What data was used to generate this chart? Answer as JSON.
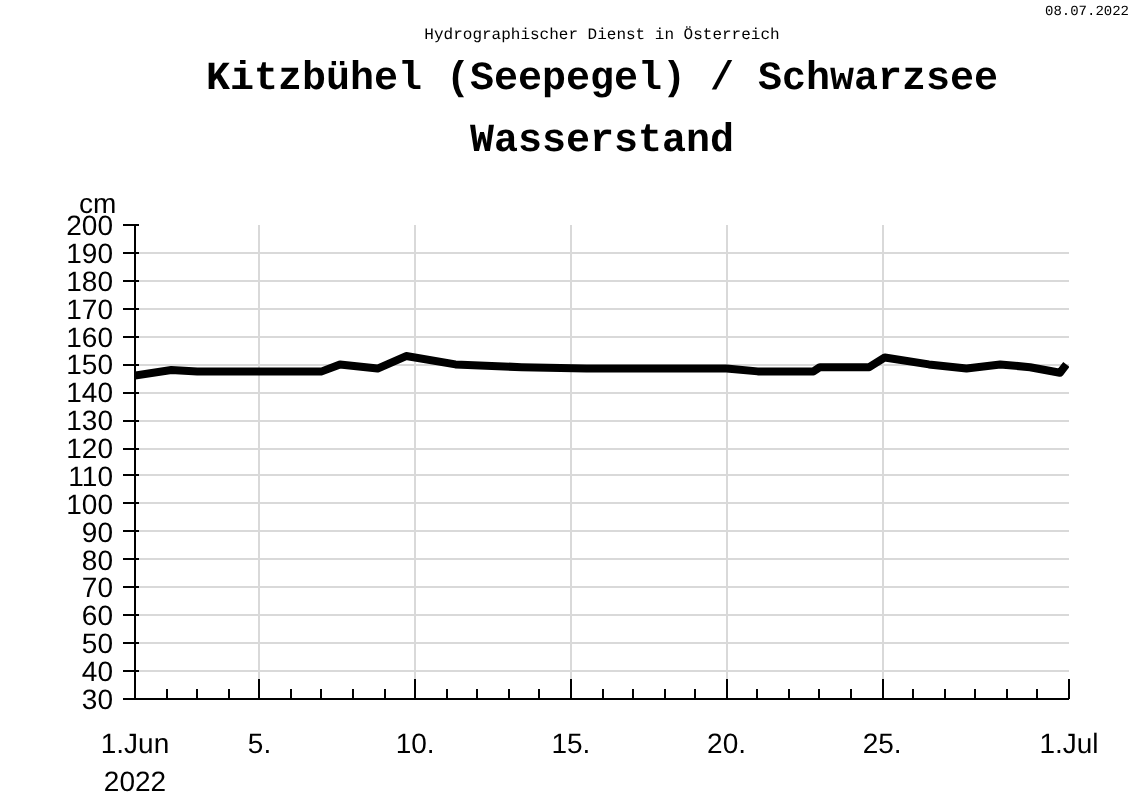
{
  "chart_data": {
    "type": "line",
    "title": "Kitzbühel (Seepegel) / Schwarzsee",
    "subtitle": "Wasserstand",
    "ylabel": "cm",
    "annotations": [
      "Hydrographischer Dienst in Österreich",
      "08.07.2022"
    ],
    "x": [
      "2022-06-01T00:00",
      "2022-06-02T04:00",
      "2022-06-03T00:00",
      "2022-06-05T00:00",
      "2022-06-07T00:00",
      "2022-06-07T14:00",
      "2022-06-08T19:00",
      "2022-06-09T17:00",
      "2022-06-11T07:00",
      "2022-06-13T10:00",
      "2022-06-15T12:00",
      "2022-06-17T00:00",
      "2022-06-20T00:00",
      "2022-06-21T00:00",
      "2022-06-22T19:00",
      "2022-06-23T00:00",
      "2022-06-24T14:00",
      "2022-06-25T02:00",
      "2022-06-26T12:00",
      "2022-06-27T17:00",
      "2022-06-28T19:00",
      "2022-06-29T18:00",
      "2022-06-30T17:00",
      "2022-06-30T22:00"
    ],
    "series": [
      {
        "color": "#000000",
        "values": [
          146,
          148,
          147.5,
          147.5,
          147.5,
          150,
          148.5,
          153,
          150,
          149,
          148.5,
          148.5,
          148.5,
          147.5,
          147.5,
          149,
          149,
          152.5,
          150,
          148.5,
          150,
          149,
          147,
          150
        ]
      }
    ],
    "xlim": [
      "2022-06-01T00:00",
      "2022-07-01T00:00"
    ],
    "xticks": [
      {
        "value": "2022-06-01",
        "label": "1.Jun\n2022"
      },
      {
        "value": "2022-06-02",
        "label": null
      },
      {
        "value": "2022-06-03",
        "label": null
      },
      {
        "value": "2022-06-04",
        "label": null
      },
      {
        "value": "2022-06-05",
        "label": "5."
      },
      {
        "value": "2022-06-06",
        "label": null
      },
      {
        "value": "2022-06-07",
        "label": null
      },
      {
        "value": "2022-06-08",
        "label": null
      },
      {
        "value": "2022-06-09",
        "label": null
      },
      {
        "value": "2022-06-10",
        "label": "10."
      },
      {
        "value": "2022-06-11",
        "label": null
      },
      {
        "value": "2022-06-12",
        "label": null
      },
      {
        "value": "2022-06-13",
        "label": null
      },
      {
        "value": "2022-06-14",
        "label": null
      },
      {
        "value": "2022-06-15",
        "label": "15."
      },
      {
        "value": "2022-06-16",
        "label": null
      },
      {
        "value": "2022-06-17",
        "label": null
      },
      {
        "value": "2022-06-18",
        "label": null
      },
      {
        "value": "2022-06-19",
        "label": null
      },
      {
        "value": "2022-06-20",
        "label": "20."
      },
      {
        "value": "2022-06-21",
        "label": null
      },
      {
        "value": "2022-06-22",
        "label": null
      },
      {
        "value": "2022-06-23",
        "label": null
      },
      {
        "value": "2022-06-24",
        "label": null
      },
      {
        "value": "2022-06-25",
        "label": "25."
      },
      {
        "value": "2022-06-26",
        "label": null
      },
      {
        "value": "2022-06-27",
        "label": null
      },
      {
        "value": "2022-06-28",
        "label": null
      },
      {
        "value": "2022-06-29",
        "label": null
      },
      {
        "value": "2022-06-30",
        "label": null
      },
      {
        "value": "2022-07-01",
        "label": "1.Jul"
      }
    ],
    "ylim": [
      30,
      200
    ],
    "yticks": [
      30,
      40,
      50,
      60,
      70,
      80,
      90,
      100,
      110,
      120,
      130,
      140,
      150,
      160,
      170,
      180,
      190,
      200
    ],
    "grid": true,
    "marker": "none",
    "line_style": "solid"
  }
}
